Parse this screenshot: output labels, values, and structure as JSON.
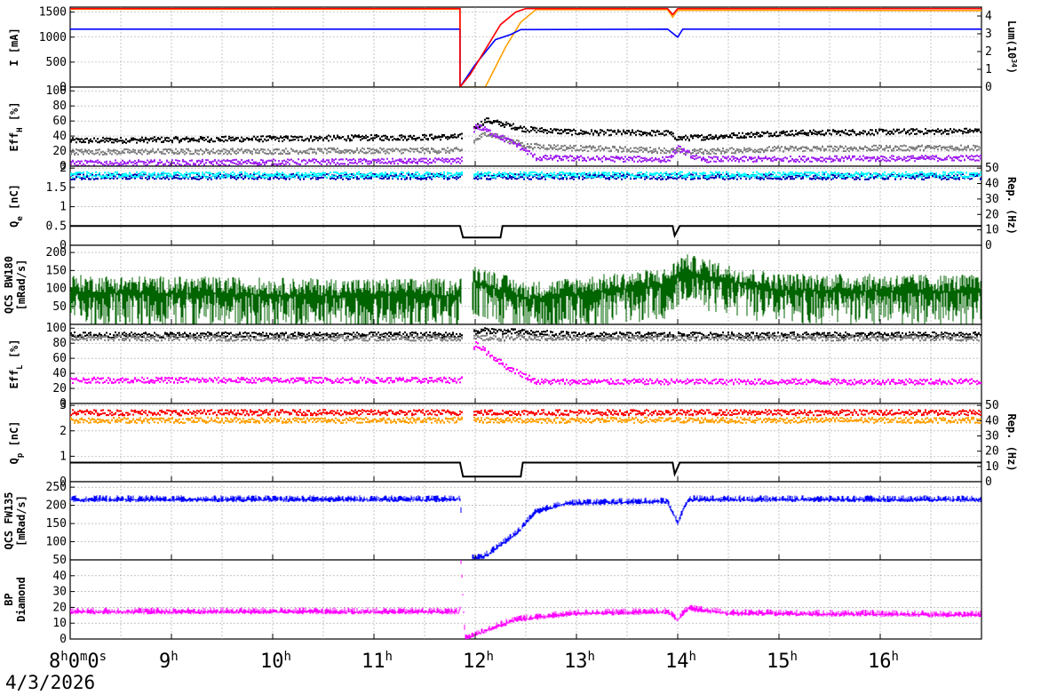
{
  "date": "4/3/2026",
  "time_axis": {
    "range_hours": [
      8.0,
      17.0
    ],
    "ticks": [
      {
        "t": 8,
        "base": "8",
        "sup": "h",
        "extra": "0",
        "sup2": "m",
        "extra2": "0",
        "sup3": "s"
      },
      {
        "t": 9,
        "base": "9",
        "sup": "h"
      },
      {
        "t": 10,
        "base": "10",
        "sup": "h"
      },
      {
        "t": 11,
        "base": "11",
        "sup": "h"
      },
      {
        "t": 12,
        "base": "12",
        "sup": "h"
      },
      {
        "t": 13,
        "base": "13",
        "sup": "h"
      },
      {
        "t": 14,
        "base": "14",
        "sup": "h"
      },
      {
        "t": 15,
        "base": "15",
        "sup": "h"
      },
      {
        "t": 16,
        "base": "16",
        "sup": "h"
      }
    ]
  },
  "colors": {
    "orange": "#ff9f00",
    "blue": "#0000ff",
    "red": "#ff0000",
    "black": "#000000",
    "grey": "#808080",
    "purple": "#a020f0",
    "cyan": "#00ffff",
    "navy": "#0000b0",
    "green": "#006400",
    "magenta": "#ff00ff",
    "grid": "#a0a0a0"
  },
  "chart_data": [
    {
      "id": "current",
      "type": "line",
      "ylabel": "I [mA]",
      "ylim": [
        0,
        1600
      ],
      "yticks": [
        0,
        500,
        1000,
        1500
      ],
      "right_axis": {
        "label_html": "Lum(10<tspan baseline-shift='super' font-size='8'>34</tspan>)",
        "ylim": [
          0,
          4.5
        ],
        "ticks": [
          0,
          1,
          2,
          3,
          4
        ]
      },
      "series": [
        {
          "color": "orange",
          "points": [
            [
              8.0,
              1560
            ],
            [
              11.85,
              1560
            ],
            [
              11.85,
              0
            ],
            [
              12.1,
              0
            ],
            [
              12.15,
              200
            ],
            [
              12.3,
              800
            ],
            [
              12.45,
              1300
            ],
            [
              12.6,
              1550
            ],
            [
              13.9,
              1550
            ],
            [
              13.95,
              1400
            ],
            [
              14.0,
              1540
            ],
            [
              17.0,
              1530
            ]
          ]
        },
        {
          "color": "blue",
          "points": [
            [
              8.0,
              1160
            ],
            [
              11.85,
              1160
            ],
            [
              11.85,
              0
            ],
            [
              12.0,
              450
            ],
            [
              12.2,
              950
            ],
            [
              12.35,
              1050
            ],
            [
              12.45,
              1150
            ],
            [
              13.9,
              1160
            ],
            [
              14.0,
              1000
            ],
            [
              14.05,
              1160
            ],
            [
              17.0,
              1160
            ]
          ]
        },
        {
          "color": "red",
          "points": [
            [
              8.0,
              1570
            ],
            [
              11.85,
              1570
            ],
            [
              11.85,
              0
            ],
            [
              11.95,
              250
            ],
            [
              12.1,
              750
            ],
            [
              12.25,
              1250
            ],
            [
              12.4,
              1500
            ],
            [
              12.5,
              1570
            ],
            [
              13.9,
              1570
            ],
            [
              13.95,
              1450
            ],
            [
              14.0,
              1570
            ],
            [
              17.0,
              1570
            ]
          ]
        }
      ]
    },
    {
      "id": "eff_h",
      "type": "scatter",
      "ylabel": "Eff_H [%]",
      "ylim": [
        0,
        105
      ],
      "yticks": [
        0,
        20,
        40,
        60,
        80,
        100
      ],
      "series": [
        {
          "color": "black",
          "band": [
            [
              8.0,
              35
            ],
            [
              11.85,
              40
            ],
            [
              12.1,
              62
            ],
            [
              12.5,
              50
            ],
            [
              13.0,
              46
            ],
            [
              13.9,
              45
            ],
            [
              14.0,
              38
            ],
            [
              14.3,
              40
            ],
            [
              15.0,
              45
            ],
            [
              17.0,
              48
            ]
          ]
        },
        {
          "color": "grey",
          "band": [
            [
              8.0,
              20
            ],
            [
              11.85,
              22
            ],
            [
              12.1,
              45
            ],
            [
              12.5,
              28
            ],
            [
              13.0,
              25
            ],
            [
              13.9,
              22
            ],
            [
              14.1,
              20
            ],
            [
              15.0,
              24
            ],
            [
              17.0,
              26
            ]
          ]
        },
        {
          "color": "purple",
          "band": [
            [
              8.0,
              5
            ],
            [
              11.85,
              8
            ],
            [
              12.0,
              55
            ],
            [
              12.4,
              30
            ],
            [
              12.6,
              12
            ],
            [
              13.9,
              10
            ],
            [
              14.0,
              25
            ],
            [
              14.2,
              10
            ],
            [
              17.0,
              12
            ]
          ]
        }
      ]
    },
    {
      "id": "charge_e",
      "type": "scatter",
      "ylabel": "Q_e [nC]",
      "ylim": [
        0,
        2.05
      ],
      "yticks": [
        0,
        0.5,
        1,
        1.5,
        2
      ],
      "right_axis": {
        "label": "Rep. (Hz)",
        "ylim": [
          0,
          51.25
        ],
        "ticks": [
          0,
          10,
          20,
          30,
          40,
          50
        ]
      },
      "series": [
        {
          "color": "navy",
          "band": [
            [
              8.0,
              1.8
            ],
            [
              17.0,
              1.8
            ]
          ]
        },
        {
          "color": "cyan",
          "band": [
            [
              8.0,
              1.85
            ],
            [
              17.0,
              1.85
            ]
          ]
        },
        {
          "color": "black",
          "steps": [
            [
              8.0,
              0.5
            ],
            [
              11.85,
              0.5
            ],
            [
              11.88,
              0.2
            ],
            [
              12.25,
              0.2
            ],
            [
              12.27,
              0.5
            ],
            [
              13.95,
              0.5
            ],
            [
              13.97,
              0.25
            ],
            [
              14.02,
              0.5
            ],
            [
              17.0,
              0.5
            ]
          ]
        }
      ]
    },
    {
      "id": "qcs_bw180",
      "type": "area",
      "ylabel": "QCS BW180 [mRad/s]",
      "ylim": [
        0,
        220
      ],
      "yticks": [
        50,
        100,
        150,
        200
      ],
      "series": [
        {
          "color": "green",
          "band": [
            [
              8.0,
              90
            ],
            [
              10.5,
              80
            ],
            [
              11.85,
              80
            ],
            [
              12.0,
              120
            ],
            [
              12.5,
              70
            ],
            [
              13.9,
              110
            ],
            [
              14.05,
              150
            ],
            [
              14.5,
              120
            ],
            [
              15.0,
              95
            ],
            [
              17.0,
              90
            ]
          ]
        }
      ]
    },
    {
      "id": "eff_l",
      "type": "scatter",
      "ylabel": "Eff_L [%]",
      "ylim": [
        0,
        105
      ],
      "yticks": [
        0,
        20,
        40,
        60,
        80,
        100
      ],
      "series": [
        {
          "color": "black",
          "band": [
            [
              8.0,
              92
            ],
            [
              11.85,
              92
            ],
            [
              12.1,
              98
            ],
            [
              13.0,
              92
            ],
            [
              17.0,
              92
            ]
          ]
        },
        {
          "color": "grey",
          "band": [
            [
              8.0,
              88
            ],
            [
              17.0,
              88
            ]
          ]
        },
        {
          "color": "magenta",
          "band": [
            [
              8.0,
              32
            ],
            [
              11.85,
              32
            ],
            [
              12.0,
              80
            ],
            [
              12.3,
              50
            ],
            [
              12.6,
              30
            ],
            [
              14.0,
              30
            ],
            [
              17.0,
              30
            ]
          ]
        }
      ]
    },
    {
      "id": "charge_p",
      "type": "scatter",
      "ylabel": "Q_p [nC]",
      "ylim": [
        0,
        3.075
      ],
      "yticks": [
        0,
        1,
        2,
        3
      ],
      "right_axis": {
        "label": "Rep. (Hz)",
        "ylim": [
          0,
          51.25
        ],
        "ticks": [
          0,
          10,
          20,
          30,
          40,
          50
        ]
      },
      "series": [
        {
          "color": "red",
          "band": [
            [
              8.0,
              2.75
            ],
            [
              17.0,
              2.75
            ]
          ]
        },
        {
          "color": "orange",
          "band": [
            [
              8.0,
              2.45
            ],
            [
              17.0,
              2.45
            ]
          ]
        },
        {
          "color": "black",
          "steps": [
            [
              8.0,
              0.75
            ],
            [
              11.85,
              0.75
            ],
            [
              11.88,
              0.2
            ],
            [
              12.45,
              0.2
            ],
            [
              12.47,
              0.75
            ],
            [
              13.95,
              0.75
            ],
            [
              13.97,
              0.3
            ],
            [
              14.02,
              0.75
            ],
            [
              17.0,
              0.75
            ]
          ]
        }
      ]
    },
    {
      "id": "qcs_fw135",
      "type": "area",
      "ylabel": "QCS FW135 [mRad/s]",
      "ylim": [
        50,
        265
      ],
      "yticks": [
        50,
        100,
        150,
        200,
        250
      ],
      "series": [
        {
          "color": "blue",
          "band": [
            [
              8.0,
              215
            ],
            [
              11.85,
              215
            ],
            [
              11.9,
              50
            ],
            [
              12.1,
              60
            ],
            [
              12.4,
              120
            ],
            [
              12.6,
              180
            ],
            [
              12.9,
              205
            ],
            [
              13.9,
              210
            ],
            [
              14.0,
              150
            ],
            [
              14.1,
              215
            ],
            [
              17.0,
              215
            ]
          ]
        }
      ]
    },
    {
      "id": "bp_diamond",
      "type": "area",
      "ylabel": "BP Diamond",
      "ylim": [
        0,
        50
      ],
      "yticks": [
        0,
        10,
        20,
        30,
        40
      ],
      "series": [
        {
          "color": "magenta",
          "band": [
            [
              8.0,
              17
            ],
            [
              11.85,
              17
            ],
            [
              11.86,
              50
            ],
            [
              11.9,
              0
            ],
            [
              12.1,
              5
            ],
            [
              12.4,
              12
            ],
            [
              13.0,
              16
            ],
            [
              13.9,
              17
            ],
            [
              14.0,
              12
            ],
            [
              14.1,
              19
            ],
            [
              14.5,
              16
            ],
            [
              17.0,
              15
            ]
          ]
        }
      ]
    }
  ]
}
